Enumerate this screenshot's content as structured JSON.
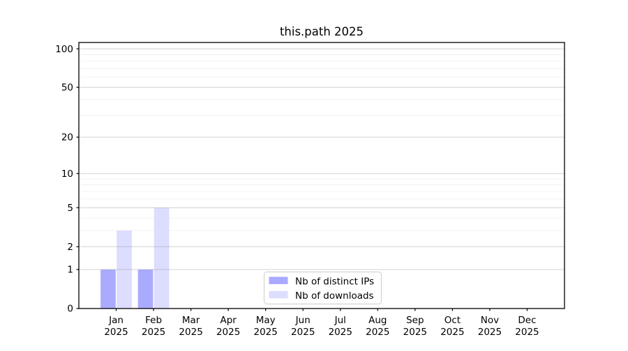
{
  "chart_data": {
    "type": "bar",
    "title": "this.path 2025",
    "categories": [
      "Jan",
      "Feb",
      "Mar",
      "Apr",
      "May",
      "Jun",
      "Jul",
      "Aug",
      "Sep",
      "Oct",
      "Nov",
      "Dec"
    ],
    "category_second_line": "2025",
    "series": [
      {
        "name": "Nb of distinct IPs",
        "color": "#aaaaff",
        "values": [
          1,
          1,
          0,
          0,
          0,
          0,
          0,
          0,
          0,
          0,
          0,
          0
        ]
      },
      {
        "name": "Nb of downloads",
        "color": "#ddddff",
        "values": [
          3,
          5,
          0,
          0,
          0,
          0,
          0,
          0,
          0,
          0,
          0,
          0
        ]
      }
    ],
    "y_axis": {
      "scale": "log1p",
      "tick_values": [
        0,
        1,
        2,
        5,
        10,
        20,
        50,
        100
      ],
      "minor_grid_values": [
        3,
        4,
        6,
        7,
        8,
        9,
        30,
        40,
        60,
        70,
        80,
        90
      ],
      "ymax": 112
    },
    "x_axis": {
      "label": "",
      "slots": 13
    },
    "legend": {
      "position": "lower-center"
    },
    "grid": {
      "major_color_rgba": "rgba(150,150,150,0.45)",
      "minor_color": "#f0f0f0"
    },
    "axis_color": "#000000",
    "legend_border_color": "#cccccc",
    "background_color": "#ffffff"
  }
}
